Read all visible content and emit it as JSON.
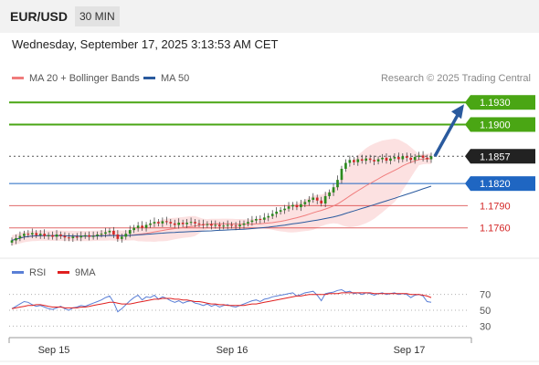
{
  "header": {
    "symbol": "EUR/USD",
    "timeframe": "30 MIN",
    "datetime": "Wednesday, September 17, 2025 3:13:53 AM CET"
  },
  "legend": {
    "ma20": {
      "label": "MA 20 + Bollinger Bands",
      "color": "#f07c7c"
    },
    "ma50": {
      "label": "MA 50",
      "color": "#2a5a9e"
    },
    "source": "Research © 2025 Trading Central"
  },
  "rsi_legend": {
    "rsi": {
      "label": "RSI",
      "color": "#5a7fd6"
    },
    "ma9": {
      "label": "9MA",
      "color": "#e02020"
    }
  },
  "chart_data": {
    "type": "candlestick",
    "price_axis": {
      "min": 1.1725,
      "max": 1.1955
    },
    "x_ticks": [
      "Sep 15",
      "Sep 16",
      "Sep 17"
    ],
    "levels": [
      {
        "value": 1.193,
        "label": "1.1930",
        "role": "resistance",
        "color": "#4aa614"
      },
      {
        "value": 1.19,
        "label": "1.1900",
        "role": "resistance",
        "color": "#4aa614"
      },
      {
        "value": 1.1857,
        "label": "1.1857",
        "role": "last_price",
        "color": "#222222"
      },
      {
        "value": 1.182,
        "label": "1.1820",
        "role": "pivot",
        "color": "#1f66c2"
      },
      {
        "value": 1.179,
        "label": "1.1790",
        "role": "support",
        "color": "#d42828"
      },
      {
        "value": 1.176,
        "label": "1.1760",
        "role": "support",
        "color": "#d42828"
      }
    ],
    "close_series": [
      1.1743,
      1.1746,
      1.1749,
      1.1752,
      1.1751,
      1.1753,
      1.175,
      1.1752,
      1.1749,
      1.175,
      1.1748,
      1.1751,
      1.1749,
      1.1747,
      1.1746,
      1.1748,
      1.1747,
      1.1749,
      1.175,
      1.1748,
      1.1749,
      1.1751,
      1.1752,
      1.1754,
      1.1756,
      1.1751,
      1.1745,
      1.1748,
      1.1752,
      1.1757,
      1.176,
      1.1763,
      1.176,
      1.1764,
      1.1766,
      1.1768,
      1.1766,
      1.1769,
      1.1768,
      1.1766,
      1.1764,
      1.1767,
      1.1765,
      1.1767,
      1.1768,
      1.1766,
      1.1765,
      1.1764,
      1.1765,
      1.1763,
      1.1764,
      1.1762,
      1.1763,
      1.1764,
      1.1763,
      1.1762,
      1.1764,
      1.1766,
      1.1768,
      1.177,
      1.1772,
      1.1771,
      1.1774,
      1.1776,
      1.1779,
      1.1782,
      1.1784,
      1.1786,
      1.1789,
      1.1791,
      1.1788,
      1.1792,
      1.1795,
      1.1798,
      1.1801,
      1.1797,
      1.1793,
      1.1803,
      1.1808,
      1.1815,
      1.1825,
      1.184,
      1.1848,
      1.1852,
      1.1849,
      1.1853,
      1.1851,
      1.1854,
      1.1852,
      1.185,
      1.1853,
      1.1855,
      1.1851,
      1.1854,
      1.1856,
      1.1853,
      1.1857,
      1.1855,
      1.1852,
      1.1856,
      1.1858,
      1.1855,
      1.1853,
      1.1857
    ],
    "forecast": {
      "from": 1.1857,
      "to": 1.193
    },
    "rsi": {
      "levels": [
        70,
        50,
        30
      ],
      "rsi_series": [
        52,
        55,
        58,
        61,
        60,
        57,
        55,
        56,
        54,
        52,
        51,
        53,
        55,
        52,
        50,
        53,
        54,
        56,
        55,
        57,
        59,
        61,
        63,
        66,
        68,
        60,
        48,
        52,
        57,
        62,
        66,
        69,
        63,
        67,
        66,
        69,
        64,
        67,
        65,
        62,
        60,
        62,
        59,
        61,
        62,
        59,
        58,
        56,
        58,
        55,
        57,
        54,
        56,
        57,
        55,
        54,
        56,
        58,
        60,
        62,
        63,
        61,
        64,
        65,
        67,
        68,
        69,
        70,
        71,
        72,
        68,
        70,
        72,
        73,
        74,
        69,
        62,
        71,
        72,
        73,
        75,
        76,
        73,
        74,
        71,
        72,
        70,
        72,
        71,
        69,
        71,
        72,
        70,
        71,
        72,
        70,
        71,
        70,
        66,
        69,
        70,
        68,
        61,
        60
      ],
      "ma_series": [
        52,
        53,
        54,
        55,
        56,
        56,
        57,
        57,
        56,
        55,
        54,
        54,
        54,
        53,
        53,
        53,
        53,
        54,
        54,
        55,
        56,
        57,
        58,
        59,
        60,
        60,
        59,
        58,
        58,
        58,
        59,
        60,
        61,
        62,
        63,
        64,
        64,
        65,
        65,
        65,
        64,
        64,
        63,
        63,
        62,
        61,
        61,
        60,
        59,
        58,
        58,
        57,
        57,
        56,
        56,
        56,
        56,
        56,
        57,
        58,
        58,
        59,
        60,
        61,
        62,
        63,
        64,
        65,
        66,
        67,
        68,
        68,
        69,
        70,
        70,
        70,
        70,
        70,
        71,
        71,
        71,
        72,
        72,
        72,
        72,
        72,
        72,
        72,
        72,
        71,
        71,
        71,
        71,
        71,
        71,
        71,
        71,
        71,
        70,
        70,
        70,
        69,
        68,
        66
      ]
    }
  }
}
